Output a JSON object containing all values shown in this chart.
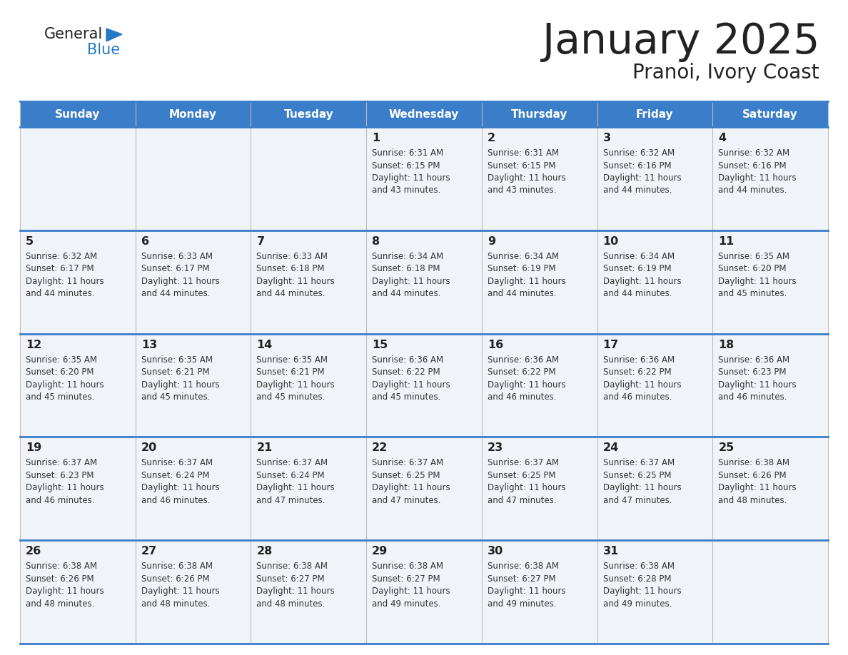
{
  "title": "January 2025",
  "subtitle": "Pranoi, Ivory Coast",
  "days_of_week": [
    "Sunday",
    "Monday",
    "Tuesday",
    "Wednesday",
    "Thursday",
    "Friday",
    "Saturday"
  ],
  "header_bg": "#3A7DC9",
  "header_text": "#FFFFFF",
  "cell_bg_light": "#F0F4F8",
  "day_num_color": "#222222",
  "text_color": "#333333",
  "border_color": "#3A7DC9",
  "grid_color": "#BBBBBB",
  "logo_general_color": "#222222",
  "logo_blue_color": "#2878C8",
  "weeks": [
    [
      {
        "day": "",
        "sunrise": "",
        "sunset": "",
        "daylight": ""
      },
      {
        "day": "",
        "sunrise": "",
        "sunset": "",
        "daylight": ""
      },
      {
        "day": "",
        "sunrise": "",
        "sunset": "",
        "daylight": ""
      },
      {
        "day": "1",
        "sunrise": "6:31 AM",
        "sunset": "6:15 PM",
        "daylight": "11 hours and 43 minutes."
      },
      {
        "day": "2",
        "sunrise": "6:31 AM",
        "sunset": "6:15 PM",
        "daylight": "11 hours and 43 minutes."
      },
      {
        "day": "3",
        "sunrise": "6:32 AM",
        "sunset": "6:16 PM",
        "daylight": "11 hours and 44 minutes."
      },
      {
        "day": "4",
        "sunrise": "6:32 AM",
        "sunset": "6:16 PM",
        "daylight": "11 hours and 44 minutes."
      }
    ],
    [
      {
        "day": "5",
        "sunrise": "6:32 AM",
        "sunset": "6:17 PM",
        "daylight": "11 hours and 44 minutes."
      },
      {
        "day": "6",
        "sunrise": "6:33 AM",
        "sunset": "6:17 PM",
        "daylight": "11 hours and 44 minutes."
      },
      {
        "day": "7",
        "sunrise": "6:33 AM",
        "sunset": "6:18 PM",
        "daylight": "11 hours and 44 minutes."
      },
      {
        "day": "8",
        "sunrise": "6:34 AM",
        "sunset": "6:18 PM",
        "daylight": "11 hours and 44 minutes."
      },
      {
        "day": "9",
        "sunrise": "6:34 AM",
        "sunset": "6:19 PM",
        "daylight": "11 hours and 44 minutes."
      },
      {
        "day": "10",
        "sunrise": "6:34 AM",
        "sunset": "6:19 PM",
        "daylight": "11 hours and 44 minutes."
      },
      {
        "day": "11",
        "sunrise": "6:35 AM",
        "sunset": "6:20 PM",
        "daylight": "11 hours and 45 minutes."
      }
    ],
    [
      {
        "day": "12",
        "sunrise": "6:35 AM",
        "sunset": "6:20 PM",
        "daylight": "11 hours and 45 minutes."
      },
      {
        "day": "13",
        "sunrise": "6:35 AM",
        "sunset": "6:21 PM",
        "daylight": "11 hours and 45 minutes."
      },
      {
        "day": "14",
        "sunrise": "6:35 AM",
        "sunset": "6:21 PM",
        "daylight": "11 hours and 45 minutes."
      },
      {
        "day": "15",
        "sunrise": "6:36 AM",
        "sunset": "6:22 PM",
        "daylight": "11 hours and 45 minutes."
      },
      {
        "day": "16",
        "sunrise": "6:36 AM",
        "sunset": "6:22 PM",
        "daylight": "11 hours and 46 minutes."
      },
      {
        "day": "17",
        "sunrise": "6:36 AM",
        "sunset": "6:22 PM",
        "daylight": "11 hours and 46 minutes."
      },
      {
        "day": "18",
        "sunrise": "6:36 AM",
        "sunset": "6:23 PM",
        "daylight": "11 hours and 46 minutes."
      }
    ],
    [
      {
        "day": "19",
        "sunrise": "6:37 AM",
        "sunset": "6:23 PM",
        "daylight": "11 hours and 46 minutes."
      },
      {
        "day": "20",
        "sunrise": "6:37 AM",
        "sunset": "6:24 PM",
        "daylight": "11 hours and 46 minutes."
      },
      {
        "day": "21",
        "sunrise": "6:37 AM",
        "sunset": "6:24 PM",
        "daylight": "11 hours and 47 minutes."
      },
      {
        "day": "22",
        "sunrise": "6:37 AM",
        "sunset": "6:25 PM",
        "daylight": "11 hours and 47 minutes."
      },
      {
        "day": "23",
        "sunrise": "6:37 AM",
        "sunset": "6:25 PM",
        "daylight": "11 hours and 47 minutes."
      },
      {
        "day": "24",
        "sunrise": "6:37 AM",
        "sunset": "6:25 PM",
        "daylight": "11 hours and 47 minutes."
      },
      {
        "day": "25",
        "sunrise": "6:38 AM",
        "sunset": "6:26 PM",
        "daylight": "11 hours and 48 minutes."
      }
    ],
    [
      {
        "day": "26",
        "sunrise": "6:38 AM",
        "sunset": "6:26 PM",
        "daylight": "11 hours and 48 minutes."
      },
      {
        "day": "27",
        "sunrise": "6:38 AM",
        "sunset": "6:26 PM",
        "daylight": "11 hours and 48 minutes."
      },
      {
        "day": "28",
        "sunrise": "6:38 AM",
        "sunset": "6:27 PM",
        "daylight": "11 hours and 48 minutes."
      },
      {
        "day": "29",
        "sunrise": "6:38 AM",
        "sunset": "6:27 PM",
        "daylight": "11 hours and 49 minutes."
      },
      {
        "day": "30",
        "sunrise": "6:38 AM",
        "sunset": "6:27 PM",
        "daylight": "11 hours and 49 minutes."
      },
      {
        "day": "31",
        "sunrise": "6:38 AM",
        "sunset": "6:28 PM",
        "daylight": "11 hours and 49 minutes."
      },
      {
        "day": "",
        "sunrise": "",
        "sunset": "",
        "daylight": ""
      }
    ]
  ]
}
